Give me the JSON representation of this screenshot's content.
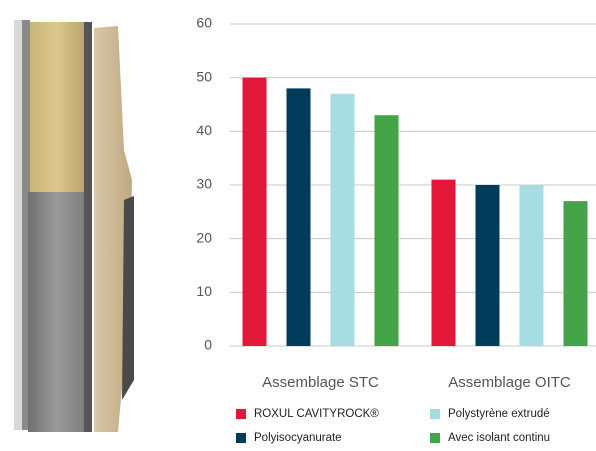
{
  "chart_data": {
    "type": "bar",
    "categories": [
      "Assemblage STC",
      "Assemblage OITC"
    ],
    "series": [
      {
        "name": "ROXUL CAVITYROCK®",
        "color": "#e3173a",
        "values": [
          50,
          31
        ]
      },
      {
        "name": "Polyisocyanurate",
        "color": "#003b5c",
        "values": [
          48,
          30
        ]
      },
      {
        "name": "Polystyrène extrudé",
        "color": "#a6dde3",
        "values": [
          47,
          30
        ]
      },
      {
        "name": "Avec isolant continu",
        "color": "#43a547",
        "values": [
          43,
          27
        ]
      }
    ],
    "ylim": [
      0,
      60
    ],
    "yticks": [
      0,
      10,
      20,
      30,
      40,
      50,
      60
    ],
    "grid": true
  }
}
